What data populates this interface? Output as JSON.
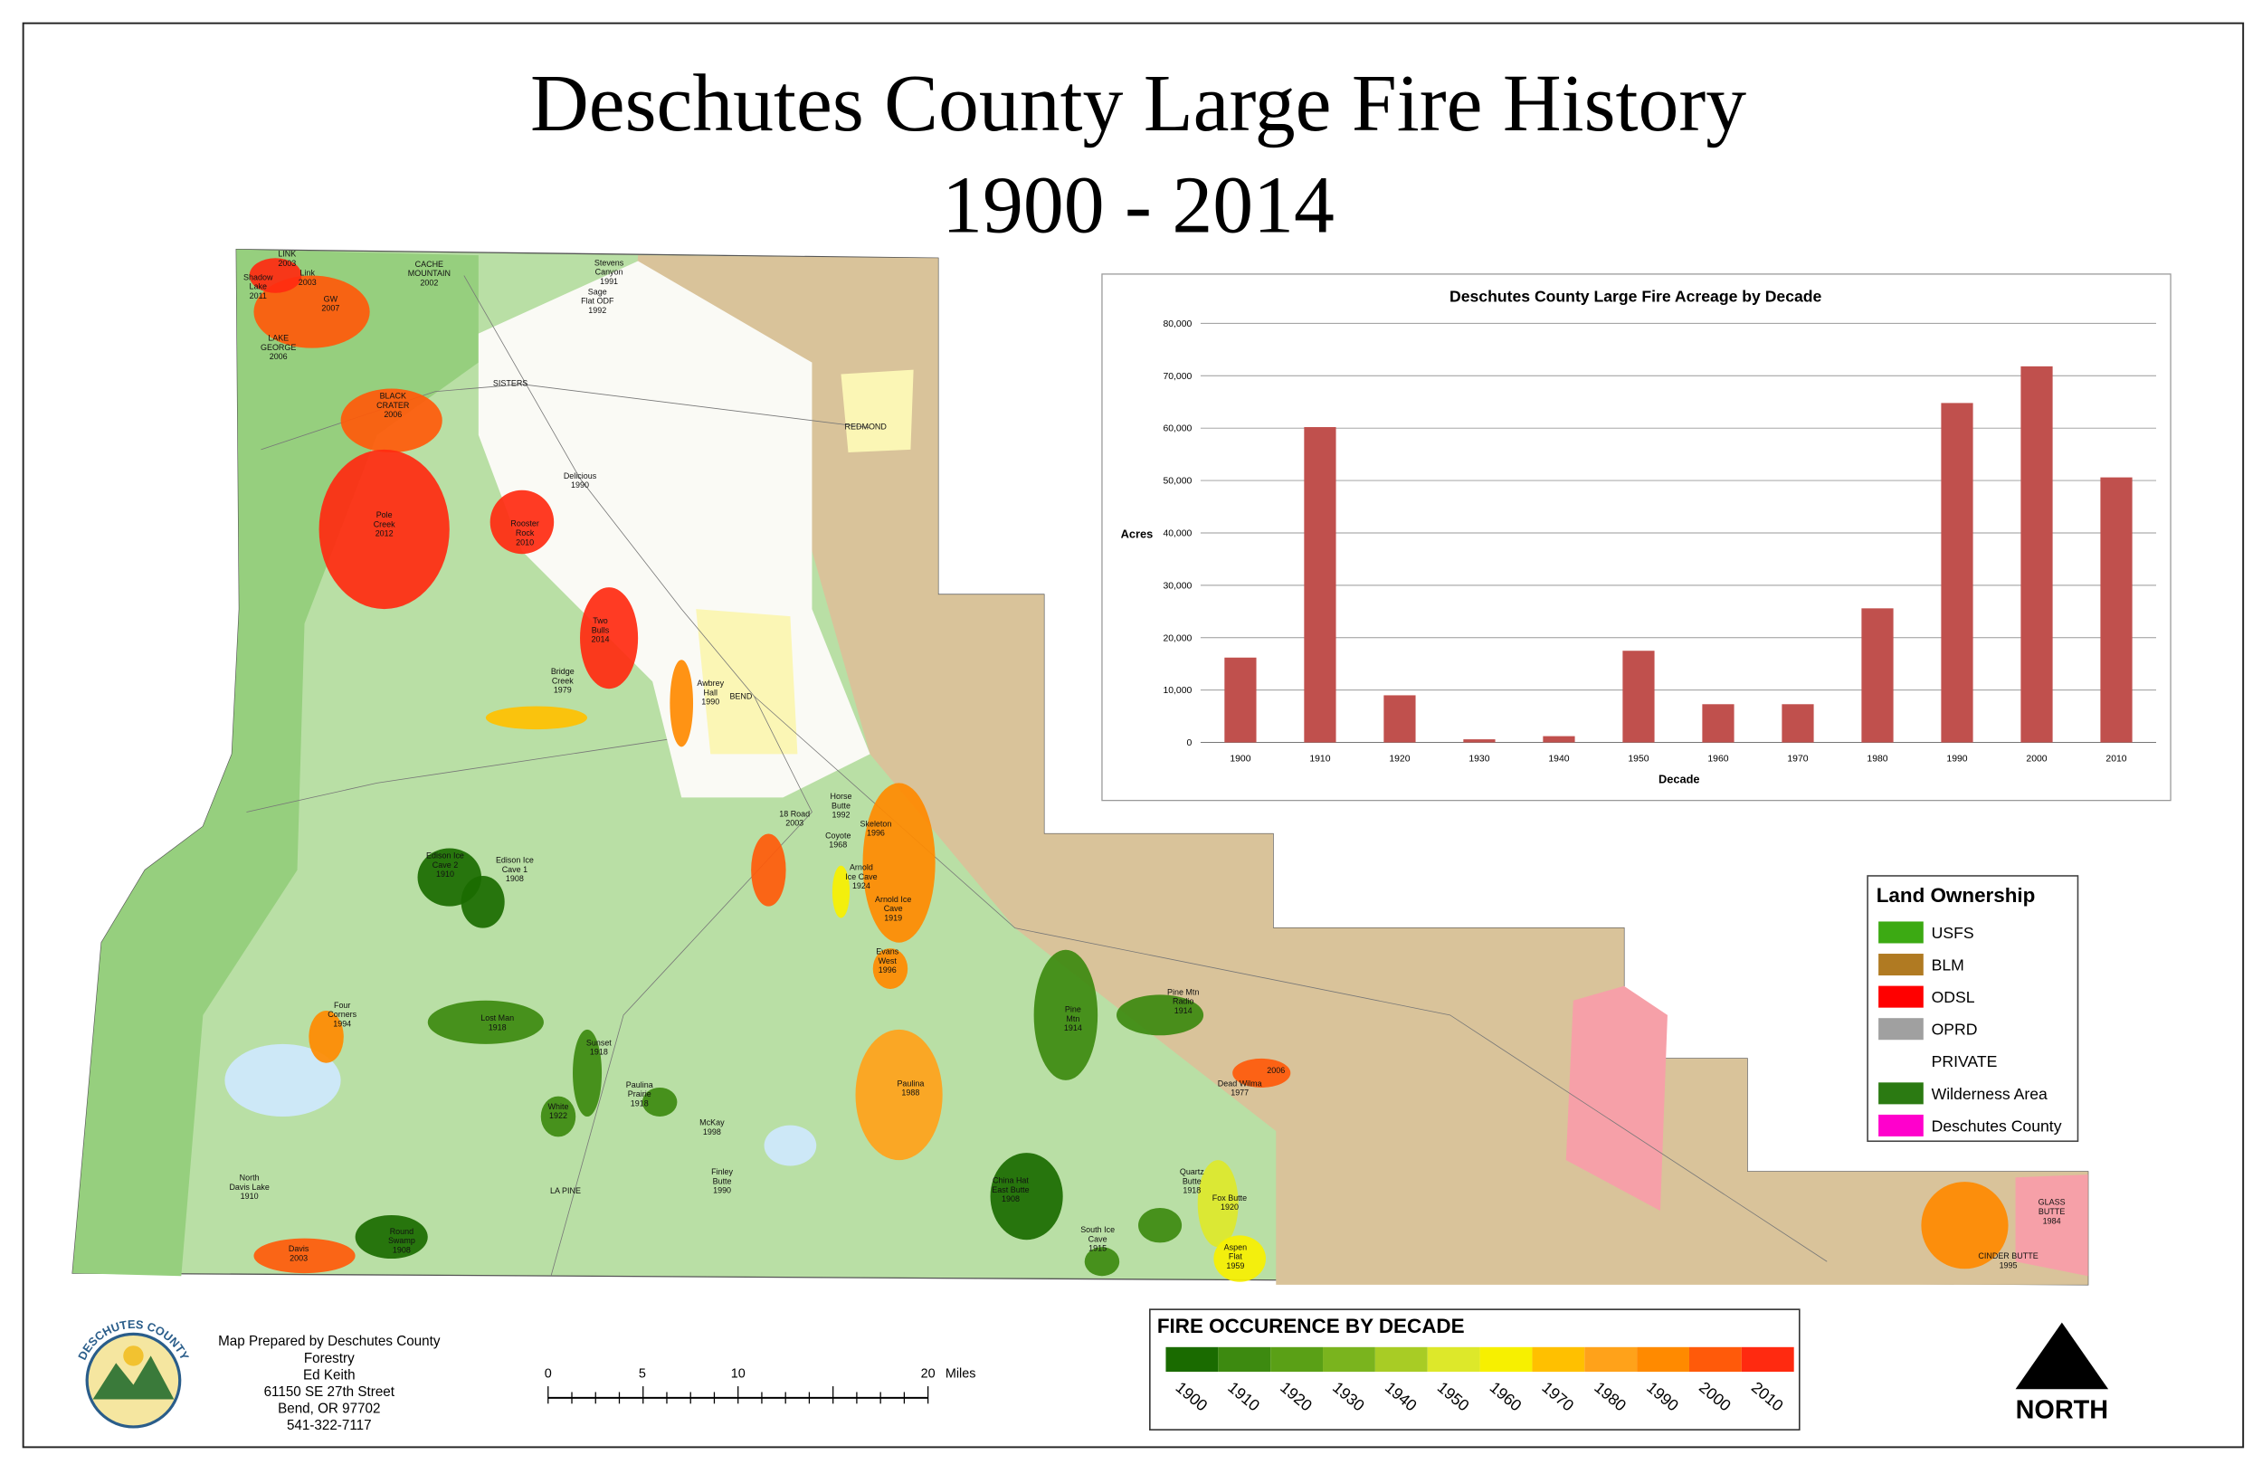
{
  "title": [
    "Deschutes County Large Fire History",
    "1900 - 2014"
  ],
  "chart_data": {
    "type": "bar",
    "title": "Deschutes County Large Fire Acreage by Decade",
    "x_label": "Decade",
    "y_label": "Acres",
    "categories": [
      "1900",
      "1910",
      "1920",
      "1930",
      "1940",
      "1950",
      "1960",
      "1970",
      "1980",
      "1990",
      "2000",
      "2010"
    ],
    "values": [
      16200,
      60200,
      9000,
      600,
      1200,
      17500,
      7300,
      7300,
      25600,
      64800,
      71800,
      50600
    ],
    "color": "#c0504d",
    "ylim": [
      0,
      80000
    ],
    "yticks": [
      0,
      {
        "value": 10000,
        "label": "10,000"
      },
      {
        "value": 20000,
        "label": "20,000"
      },
      {
        "value": 30000,
        "label": "30,000"
      },
      {
        "value": 40000,
        "label": "40,000"
      },
      {
        "value": 50000,
        "label": "50,000"
      },
      {
        "value": 60000,
        "label": "60,000"
      },
      {
        "value": 70000,
        "label": "70,000"
      },
      {
        "value": 80000,
        "label": "80,000"
      }
    ],
    "grid": true
  },
  "land_ownership": {
    "title": "Land Ownership",
    "items": [
      {
        "name": "USFS",
        "color": "#3caa13"
      },
      {
        "name": "BLM",
        "color": "#b07a22"
      },
      {
        "name": "ODSL",
        "color": "#ff0000"
      },
      {
        "name": "OPRD",
        "color": "#a0a0a0"
      },
      {
        "name": "PRIVATE",
        "color": "#ffffff"
      },
      {
        "name": "Wilderness Area",
        "color": "#2b7a12"
      },
      {
        "name": "Deschutes County",
        "color": "#ff00cc"
      }
    ]
  },
  "fire_legend": {
    "title": "FIRE OCCURENCE BY DECADE",
    "items": [
      {
        "name": "1900",
        "color": "#1a6b00"
      },
      {
        "name": "1910",
        "color": "#3d8a10"
      },
      {
        "name": "1920",
        "color": "#5aa016"
      },
      {
        "name": "1930",
        "color": "#7ab41e"
      },
      {
        "name": "1940",
        "color": "#a8cc25"
      },
      {
        "name": "1950",
        "color": "#dde82a"
      },
      {
        "name": "1960",
        "color": "#f7f000"
      },
      {
        "name": "1970",
        "color": "#ffc000"
      },
      {
        "name": "1980",
        "color": "#ffa21a"
      },
      {
        "name": "1990",
        "color": "#ff8a00"
      },
      {
        "name": "2000",
        "color": "#ff5a0a"
      },
      {
        "name": "2010",
        "color": "#ff2a10"
      }
    ]
  },
  "map_labels": [
    {
      "lines": [
        "LINK",
        "2003"
      ]
    },
    {
      "lines": [
        "Shadow",
        "Lake",
        "2011"
      ]
    },
    {
      "lines": [
        "Link",
        "2003"
      ]
    },
    {
      "lines": [
        "GW",
        "2007"
      ]
    },
    {
      "lines": [
        "CACHE",
        "MOUNTAIN",
        "2002"
      ]
    },
    {
      "lines": [
        "LAKE",
        "GEORGE",
        "2006"
      ]
    },
    {
      "lines": [
        "BLACK",
        "CRATER",
        "2006"
      ]
    },
    {
      "lines": [
        "Pole",
        "Creek",
        "2012"
      ]
    },
    {
      "lines": [
        "Stevens",
        "Canyon",
        "1991"
      ]
    },
    {
      "lines": [
        "Sage",
        "Flat ODF",
        "1992"
      ]
    },
    {
      "lines": [
        "SISTERS"
      ]
    },
    {
      "lines": [
        "REDMOND"
      ]
    },
    {
      "lines": [
        "Delicious",
        "1990"
      ]
    },
    {
      "lines": [
        "Rooster",
        "Rock",
        "2010"
      ]
    },
    {
      "lines": [
        "Two",
        "Bulls",
        "2014"
      ]
    },
    {
      "lines": [
        "Bridge",
        "Creek",
        "1979"
      ]
    },
    {
      "lines": [
        "Awbrey",
        "Hall",
        "1990"
      ]
    },
    {
      "lines": [
        "BEND"
      ]
    },
    {
      "lines": [
        "18 Road",
        "2003"
      ]
    },
    {
      "lines": [
        "Horse",
        "Butte",
        "1992"
      ]
    },
    {
      "lines": [
        "Skeleton",
        "1996"
      ]
    },
    {
      "lines": [
        "Coyote",
        "1968"
      ]
    },
    {
      "lines": [
        "Arnold",
        "Ice Cave",
        "1924"
      ]
    },
    {
      "lines": [
        "Arnold Ice",
        "Cave",
        "1919"
      ]
    },
    {
      "lines": [
        "Edison Ice",
        "Cave 2",
        "1910"
      ]
    },
    {
      "lines": [
        "Edison Ice",
        "Cave 1",
        "1908"
      ]
    },
    {
      "lines": [
        "Evans",
        "West",
        "1996"
      ]
    },
    {
      "lines": [
        "Four",
        "Corners",
        "1994"
      ]
    },
    {
      "lines": [
        "Lost Man",
        "1918"
      ]
    },
    {
      "lines": [
        "Pine",
        "Mtn",
        "1914"
      ]
    },
    {
      "lines": [
        "Pine Mtn",
        "Radio",
        "1914"
      ]
    },
    {
      "lines": [
        "Sunset",
        "1918"
      ]
    },
    {
      "lines": [
        "Paulina",
        "1988"
      ]
    },
    {
      "lines": [
        "Paulina",
        "Prairie",
        "1918"
      ]
    },
    {
      "lines": [
        "White",
        "1922"
      ]
    },
    {
      "lines": [
        "McKay",
        "1998"
      ]
    },
    {
      "lines": [
        "Dead Wilma",
        "1977"
      ]
    },
    {
      "lines": [
        "2006"
      ]
    },
    {
      "lines": [
        "North",
        "Davis Lake",
        "1910"
      ]
    },
    {
      "lines": [
        "Finley",
        "Butte",
        "1990"
      ]
    },
    {
      "lines": [
        "LA PINE"
      ]
    },
    {
      "lines": [
        "China Hat",
        "East Butte",
        "1908"
      ]
    },
    {
      "lines": [
        "Quartz",
        "Butte",
        "1918"
      ]
    },
    {
      "lines": [
        "Fox Butte",
        "1920"
      ]
    },
    {
      "lines": [
        "Round",
        "Swamp",
        "1908"
      ]
    },
    {
      "lines": [
        "South Ice",
        "Cave",
        "1915"
      ]
    },
    {
      "lines": [
        "Davis",
        "2003"
      ]
    },
    {
      "lines": [
        "Aspen",
        "Flat",
        "1959"
      ]
    },
    {
      "lines": [
        "GLASS",
        "BUTTE",
        "1984"
      ]
    },
    {
      "lines": [
        "CINDER BUTTE",
        "1995"
      ]
    }
  ],
  "scale_bar": {
    "labels": [
      "0",
      "5",
      "10",
      "20"
    ],
    "unit": "Miles"
  },
  "credits": [
    "Map Prepared by Deschutes County",
    "Forestry",
    "Ed Keith",
    "61150 SE 27th Street",
    "Bend, OR 97702",
    "541-322-7117"
  ],
  "logo": "DESCHUTES COUNTY",
  "north": "NORTH"
}
